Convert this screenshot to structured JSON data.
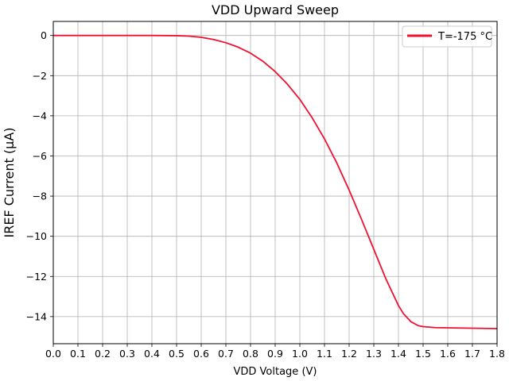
{
  "chart_data": {
    "type": "line",
    "title": "VDD Upward Sweep",
    "xlabel": "VDD Voltage (V)",
    "ylabel": "IREF Current (µA)",
    "xlim": [
      0.0,
      1.8
    ],
    "ylim": [
      -15.35,
      0.7
    ],
    "xticks": [
      0.0,
      0.1,
      0.2,
      0.3,
      0.4,
      0.5,
      0.6,
      0.7,
      0.8,
      0.9,
      1.0,
      1.1,
      1.2,
      1.3,
      1.4,
      1.5,
      1.6,
      1.7,
      1.8
    ],
    "xtick_labels": [
      "0.0",
      "0.1",
      "0.2",
      "0.3",
      "0.4",
      "0.5",
      "0.6",
      "0.7",
      "0.8",
      "0.9",
      "1.0",
      "1.1",
      "1.2",
      "1.3",
      "1.4",
      "1.5",
      "1.6",
      "1.7",
      "1.8"
    ],
    "yticks": [
      0,
      -2,
      -4,
      -6,
      -8,
      -10,
      -12,
      -14
    ],
    "ytick_labels": [
      "0",
      "−2",
      "−4",
      "−6",
      "−8",
      "−10",
      "−12",
      "−14"
    ],
    "grid": true,
    "legend_position": "top-right",
    "series": [
      {
        "name": "T=-175 °C",
        "color": "#f0102f",
        "x": [
          0.0,
          0.1,
          0.2,
          0.3,
          0.4,
          0.5,
          0.55,
          0.6,
          0.65,
          0.7,
          0.75,
          0.8,
          0.85,
          0.9,
          0.95,
          1.0,
          1.05,
          1.1,
          1.15,
          1.2,
          1.25,
          1.3,
          1.35,
          1.4,
          1.42,
          1.45,
          1.48,
          1.5,
          1.55,
          1.6,
          1.65,
          1.7,
          1.75,
          1.8
        ],
        "y": [
          0.0,
          0.0,
          0.0,
          0.0,
          0.0,
          -0.01,
          -0.03,
          -0.09,
          -0.2,
          -0.36,
          -0.58,
          -0.88,
          -1.28,
          -1.8,
          -2.43,
          -3.18,
          -4.1,
          -5.15,
          -6.35,
          -7.7,
          -9.15,
          -10.65,
          -12.15,
          -13.45,
          -13.85,
          -14.25,
          -14.45,
          -14.5,
          -14.55,
          -14.56,
          -14.57,
          -14.58,
          -14.59,
          -14.6
        ]
      }
    ]
  }
}
